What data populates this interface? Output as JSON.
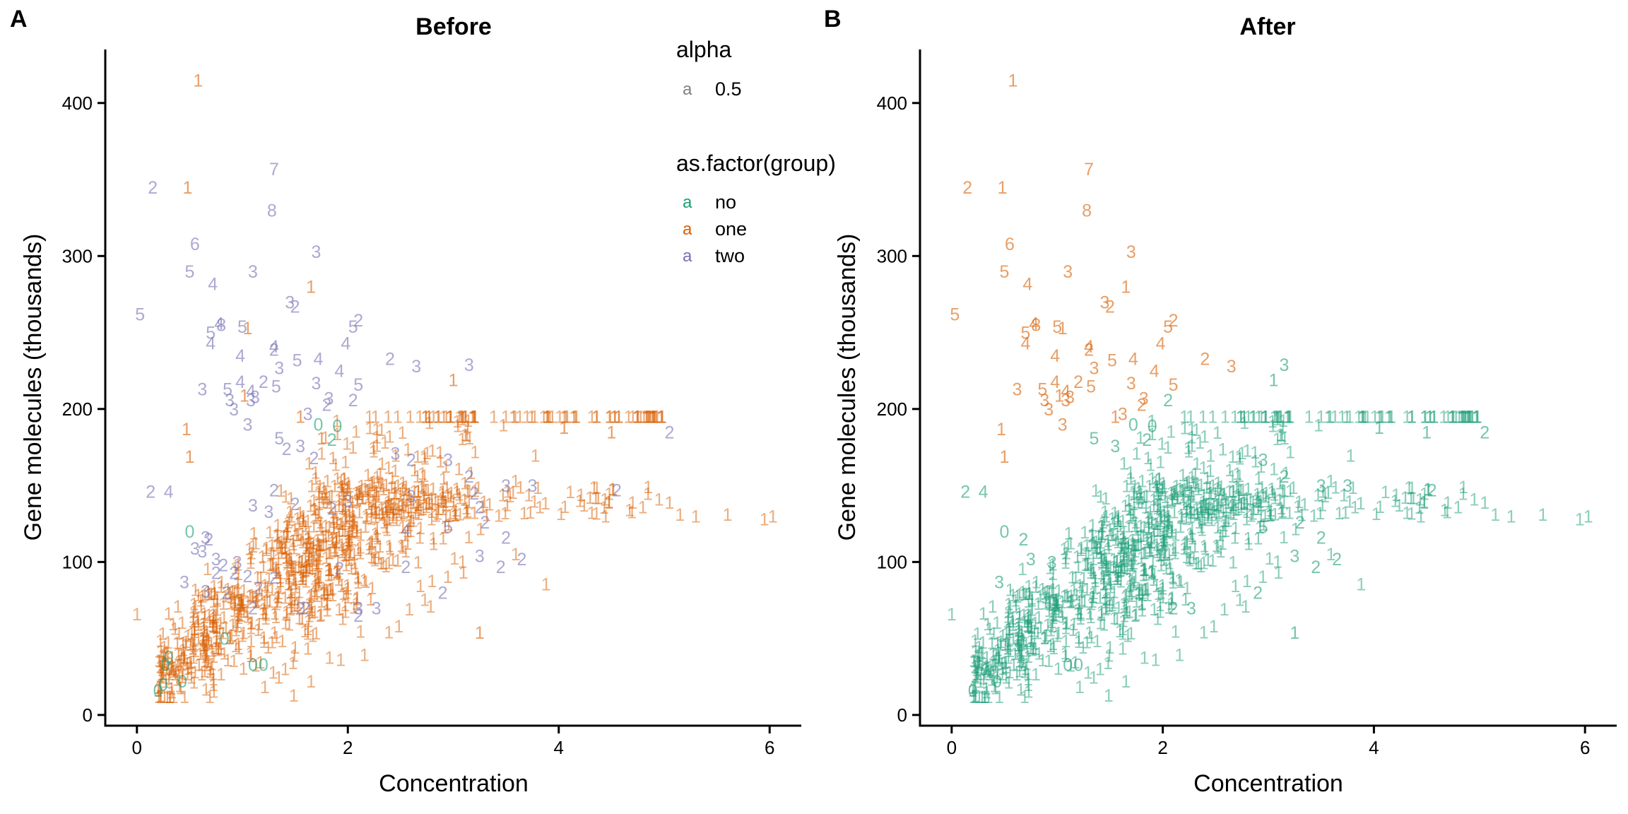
{
  "colors": {
    "no": "#1b9e77",
    "one": "#d95f02",
    "two": "#7570b3",
    "after": "#1b9e77"
  },
  "legend": {
    "alpha_title": "alpha",
    "alpha_key": "a",
    "alpha_value": "0.5",
    "group_title": "as.factor(group)",
    "group_key": "a",
    "groups": [
      {
        "id": "no",
        "label": "no"
      },
      {
        "id": "one",
        "label": "one"
      },
      {
        "id": "two",
        "label": "two"
      }
    ]
  },
  "chart_data": [
    {
      "type": "scatter",
      "panel": "A",
      "title": "Before",
      "xlabel": "Concentration",
      "ylabel": "Gene molecules (thousands)",
      "xlim": [
        -0.3,
        6.3
      ],
      "ylim": [
        -7,
        435
      ],
      "xticks": [
        "0",
        "2",
        "4",
        "6"
      ],
      "yticks": [
        "0",
        "100",
        "200",
        "300",
        "400"
      ],
      "labelled_points": [
        [
          0.58,
          415,
          "1",
          "one"
        ],
        [
          0.48,
          345,
          "1",
          "one"
        ],
        [
          0.15,
          345,
          "2",
          "two"
        ],
        [
          1.3,
          357,
          "7",
          "two"
        ],
        [
          1.28,
          330,
          "8",
          "two"
        ],
        [
          0.55,
          308,
          "6",
          "two"
        ],
        [
          1.7,
          303,
          "3",
          "two"
        ],
        [
          0.5,
          290,
          "5",
          "two"
        ],
        [
          0.72,
          282,
          "4",
          "two"
        ],
        [
          1.1,
          290,
          "3",
          "two"
        ],
        [
          1.65,
          280,
          "1",
          "one"
        ],
        [
          1.45,
          270,
          "3",
          "two"
        ],
        [
          1.5,
          267,
          "2",
          "two"
        ],
        [
          0.03,
          262,
          "5",
          "two"
        ],
        [
          0.78,
          256,
          "4",
          "two"
        ],
        [
          0.8,
          255,
          "8",
          "two"
        ],
        [
          1.0,
          254,
          "5",
          "two"
        ],
        [
          1.05,
          253,
          "1",
          "one"
        ],
        [
          2.1,
          258,
          "2",
          "two"
        ],
        [
          2.05,
          254,
          "5",
          "two"
        ],
        [
          0.7,
          250,
          "5",
          "two"
        ],
        [
          0.7,
          243,
          "4",
          "two"
        ],
        [
          1.3,
          241,
          "4",
          "two"
        ],
        [
          1.3,
          239,
          "2",
          "two"
        ],
        [
          1.98,
          243,
          "4",
          "two"
        ],
        [
          0.98,
          235,
          "4",
          "two"
        ],
        [
          1.52,
          232,
          "5",
          "two"
        ],
        [
          1.72,
          233,
          "4",
          "two"
        ],
        [
          2.4,
          233,
          "2",
          "two"
        ],
        [
          2.65,
          228,
          "3",
          "two"
        ],
        [
          3.15,
          229,
          "3",
          "two"
        ],
        [
          1.35,
          227,
          "3",
          "two"
        ],
        [
          0.98,
          218,
          "4",
          "two"
        ],
        [
          1.2,
          218,
          "2",
          "two"
        ],
        [
          1.32,
          215,
          "5",
          "two"
        ],
        [
          1.7,
          217,
          "3",
          "two"
        ],
        [
          1.92,
          225,
          "4",
          "two"
        ],
        [
          2.1,
          216,
          "5",
          "two"
        ],
        [
          3.0,
          219,
          "1",
          "one"
        ],
        [
          0.62,
          213,
          "3",
          "two"
        ],
        [
          0.86,
          213,
          "5",
          "two"
        ],
        [
          1.08,
          212,
          "4",
          "two"
        ],
        [
          0.88,
          206,
          "3",
          "two"
        ],
        [
          1.08,
          206,
          "3",
          "two"
        ],
        [
          1.12,
          208,
          "3",
          "two"
        ],
        [
          0.92,
          200,
          "3",
          "two"
        ],
        [
          1.02,
          209,
          "1",
          "one"
        ],
        [
          1.82,
          207,
          "3",
          "two"
        ],
        [
          2.05,
          206,
          "2",
          "two"
        ],
        [
          1.8,
          203,
          "2",
          "two"
        ],
        [
          1.62,
          197,
          "3",
          "two"
        ],
        [
          1.55,
          195,
          "1",
          "one"
        ],
        [
          1.05,
          190,
          "3",
          "two"
        ],
        [
          1.72,
          190,
          "0",
          "no"
        ],
        [
          1.9,
          189,
          "0",
          "no"
        ],
        [
          1.85,
          180,
          "2",
          "no"
        ],
        [
          1.75,
          181,
          "1",
          "one"
        ],
        [
          0.47,
          187,
          "1",
          "one"
        ],
        [
          3.2,
          195,
          "1",
          "one"
        ],
        [
          4.05,
          188,
          "1",
          "one"
        ],
        [
          4.5,
          185,
          "1",
          "one"
        ],
        [
          5.05,
          185,
          "2",
          "two"
        ],
        [
          1.35,
          181,
          "5",
          "two"
        ],
        [
          1.55,
          176,
          "3",
          "two"
        ],
        [
          1.68,
          168,
          "2",
          "two"
        ],
        [
          1.42,
          174,
          "2",
          "two"
        ],
        [
          2.45,
          171,
          "3",
          "two"
        ],
        [
          2.6,
          167,
          "2",
          "two"
        ],
        [
          2.95,
          167,
          "3",
          "two"
        ],
        [
          0.5,
          169,
          "1",
          "one"
        ],
        [
          0.3,
          146,
          "4",
          "two"
        ],
        [
          0.13,
          146,
          "2",
          "two"
        ],
        [
          4.55,
          147,
          "2",
          "two"
        ],
        [
          1.3,
          147,
          "2",
          "two"
        ],
        [
          2.9,
          146,
          "1",
          "one"
        ],
        [
          3.15,
          156,
          "2",
          "two"
        ],
        [
          3.5,
          150,
          "3",
          "two"
        ],
        [
          3.75,
          150,
          "3",
          "two"
        ],
        [
          3.2,
          145,
          "2",
          "two"
        ],
        [
          2.6,
          143,
          "3",
          "two"
        ],
        [
          1.1,
          137,
          "3",
          "two"
        ],
        [
          1.25,
          133,
          "3",
          "two"
        ],
        [
          1.5,
          138,
          "2",
          "two"
        ],
        [
          1.85,
          135,
          "2",
          "two"
        ],
        [
          2.0,
          140,
          "3",
          "two"
        ],
        [
          3.25,
          136,
          "2",
          "two"
        ],
        [
          2.55,
          121,
          "4",
          "two"
        ],
        [
          2.95,
          123,
          "5",
          "two"
        ],
        [
          3.3,
          126,
          "2",
          "two"
        ],
        [
          3.5,
          116,
          "2",
          "two"
        ],
        [
          0.5,
          120,
          "0",
          "no"
        ],
        [
          0.68,
          115,
          "2",
          "two"
        ],
        [
          0.65,
          116,
          "3",
          "two"
        ],
        [
          0.55,
          109,
          "3",
          "two"
        ],
        [
          0.62,
          107,
          "3",
          "two"
        ],
        [
          0.75,
          102,
          "3",
          "two"
        ],
        [
          0.95,
          100,
          "3",
          "two"
        ],
        [
          0.82,
          98,
          "2",
          "two"
        ],
        [
          0.75,
          93,
          "2",
          "two"
        ],
        [
          0.92,
          93,
          "2",
          "two"
        ],
        [
          1.05,
          91,
          "2",
          "two"
        ],
        [
          0.45,
          87,
          "3",
          "two"
        ],
        [
          0.65,
          81,
          "3",
          "two"
        ],
        [
          0.85,
          80,
          "2",
          "two"
        ],
        [
          1.15,
          83,
          "2",
          "two"
        ],
        [
          1.3,
          90,
          "2",
          "two"
        ],
        [
          1.72,
          90,
          "1",
          "one"
        ],
        [
          1.92,
          96,
          "2",
          "two"
        ],
        [
          2.55,
          97,
          "2",
          "two"
        ],
        [
          3.25,
          104,
          "3",
          "two"
        ],
        [
          3.45,
          97,
          "2",
          "two"
        ],
        [
          3.65,
          102,
          "2",
          "two"
        ],
        [
          2.9,
          80,
          "2",
          "two"
        ],
        [
          1.1,
          70,
          "2",
          "two"
        ],
        [
          1.6,
          70,
          "2",
          "two"
        ],
        [
          1.55,
          70,
          "2",
          "two"
        ],
        [
          2.1,
          70,
          "3",
          "two"
        ],
        [
          2.27,
          70,
          "3",
          "two"
        ],
        [
          0.83,
          50,
          "0",
          "no"
        ],
        [
          0.3,
          38,
          "0",
          "no"
        ],
        [
          0.27,
          33,
          "0",
          "no"
        ],
        [
          1.1,
          33,
          "0",
          "no"
        ],
        [
          1.2,
          33,
          "0",
          "no"
        ],
        [
          0.43,
          22,
          "0",
          "no"
        ],
        [
          0.2,
          16,
          "0",
          "no"
        ],
        [
          0.25,
          20,
          "0",
          "no"
        ],
        [
          3.25,
          54,
          "1",
          "one"
        ],
        [
          2.1,
          65,
          "2",
          "two"
        ]
      ]
    },
    {
      "type": "scatter",
      "panel": "B",
      "title": "After",
      "xlabel": "Concentration",
      "ylabel": "Gene molecules (thousands)",
      "xlim": [
        -0.3,
        6.3
      ],
      "ylim": [
        -7,
        435
      ],
      "xticks": [
        "0",
        "2",
        "4",
        "6"
      ],
      "yticks": [
        "0",
        "100",
        "200",
        "300",
        "400"
      ],
      "labelled_points": [
        [
          0.58,
          415,
          "1",
          "one"
        ],
        [
          0.48,
          345,
          "1",
          "one"
        ],
        [
          0.15,
          345,
          "2",
          "one"
        ],
        [
          1.3,
          357,
          "7",
          "one"
        ],
        [
          1.28,
          330,
          "8",
          "one"
        ],
        [
          0.55,
          308,
          "6",
          "one"
        ],
        [
          1.7,
          303,
          "3",
          "one"
        ],
        [
          0.5,
          290,
          "5",
          "one"
        ],
        [
          0.72,
          282,
          "4",
          "one"
        ],
        [
          1.1,
          290,
          "3",
          "one"
        ],
        [
          1.65,
          280,
          "1",
          "one"
        ],
        [
          1.45,
          270,
          "3",
          "one"
        ],
        [
          1.5,
          267,
          "2",
          "one"
        ],
        [
          0.03,
          262,
          "5",
          "one"
        ],
        [
          0.78,
          256,
          "4",
          "one"
        ],
        [
          0.8,
          255,
          "8",
          "one"
        ],
        [
          1.0,
          254,
          "5",
          "one"
        ],
        [
          1.05,
          253,
          "1",
          "one"
        ],
        [
          2.1,
          258,
          "2",
          "one"
        ],
        [
          2.05,
          254,
          "5",
          "one"
        ],
        [
          0.7,
          250,
          "5",
          "one"
        ],
        [
          0.7,
          243,
          "4",
          "one"
        ],
        [
          1.3,
          241,
          "4",
          "one"
        ],
        [
          1.3,
          239,
          "2",
          "one"
        ],
        [
          1.98,
          243,
          "4",
          "one"
        ],
        [
          0.98,
          235,
          "4",
          "one"
        ],
        [
          1.52,
          232,
          "5",
          "one"
        ],
        [
          1.72,
          233,
          "4",
          "one"
        ],
        [
          2.4,
          233,
          "2",
          "one"
        ],
        [
          2.65,
          228,
          "3",
          "one"
        ],
        [
          3.15,
          229,
          "3",
          "no"
        ],
        [
          3.05,
          219,
          "1",
          "no"
        ],
        [
          1.35,
          227,
          "3",
          "one"
        ],
        [
          0.98,
          218,
          "4",
          "one"
        ],
        [
          1.2,
          218,
          "2",
          "one"
        ],
        [
          1.32,
          215,
          "5",
          "one"
        ],
        [
          1.7,
          217,
          "3",
          "one"
        ],
        [
          1.92,
          225,
          "4",
          "one"
        ],
        [
          2.1,
          216,
          "5",
          "one"
        ],
        [
          0.62,
          213,
          "3",
          "one"
        ],
        [
          0.86,
          213,
          "5",
          "one"
        ],
        [
          1.08,
          212,
          "4",
          "one"
        ],
        [
          0.88,
          206,
          "3",
          "one"
        ],
        [
          1.08,
          206,
          "3",
          "one"
        ],
        [
          1.12,
          208,
          "3",
          "one"
        ],
        [
          0.92,
          200,
          "3",
          "one"
        ],
        [
          1.02,
          209,
          "1",
          "one"
        ],
        [
          1.82,
          207,
          "3",
          "one"
        ],
        [
          2.05,
          206,
          "2",
          "no"
        ],
        [
          1.8,
          203,
          "2",
          "one"
        ],
        [
          1.62,
          197,
          "3",
          "one"
        ],
        [
          1.55,
          195,
          "1",
          "one"
        ],
        [
          1.05,
          190,
          "3",
          "one"
        ],
        [
          0.47,
          187,
          "1",
          "one"
        ],
        [
          0.5,
          169,
          "1",
          "one"
        ],
        [
          1.72,
          190,
          "0",
          "no"
        ],
        [
          1.9,
          189,
          "0",
          "no"
        ],
        [
          1.85,
          180,
          "2",
          "no"
        ],
        [
          1.35,
          181,
          "5",
          "no"
        ],
        [
          1.55,
          176,
          "3",
          "no"
        ],
        [
          4.05,
          188,
          "1",
          "no"
        ],
        [
          4.5,
          185,
          "1",
          "no"
        ],
        [
          5.05,
          185,
          "2",
          "no"
        ],
        [
          0.3,
          146,
          "4",
          "no"
        ],
        [
          0.13,
          146,
          "2",
          "no"
        ],
        [
          4.55,
          147,
          "2",
          "no"
        ],
        [
          2.95,
          167,
          "3",
          "no"
        ],
        [
          3.15,
          156,
          "2",
          "no"
        ],
        [
          3.5,
          150,
          "3",
          "no"
        ],
        [
          3.75,
          150,
          "3",
          "no"
        ],
        [
          2.95,
          123,
          "5",
          "no"
        ],
        [
          3.3,
          126,
          "2",
          "no"
        ],
        [
          3.5,
          116,
          "2",
          "no"
        ],
        [
          0.5,
          120,
          "0",
          "no"
        ],
        [
          0.68,
          115,
          "2",
          "no"
        ],
        [
          0.75,
          102,
          "3",
          "no"
        ],
        [
          0.95,
          100,
          "3",
          "no"
        ],
        [
          0.45,
          87,
          "3",
          "no"
        ],
        [
          3.25,
          104,
          "3",
          "no"
        ],
        [
          3.45,
          97,
          "2",
          "no"
        ],
        [
          3.65,
          102,
          "2",
          "no"
        ],
        [
          2.9,
          80,
          "2",
          "no"
        ],
        [
          2.1,
          70,
          "2",
          "no"
        ],
        [
          2.27,
          70,
          "3",
          "no"
        ],
        [
          1.1,
          33,
          "0",
          "no"
        ],
        [
          1.2,
          33,
          "0",
          "no"
        ],
        [
          0.43,
          22,
          "0",
          "no"
        ],
        [
          0.2,
          16,
          "0",
          "no"
        ],
        [
          3.25,
          54,
          "1",
          "no"
        ]
      ]
    }
  ]
}
